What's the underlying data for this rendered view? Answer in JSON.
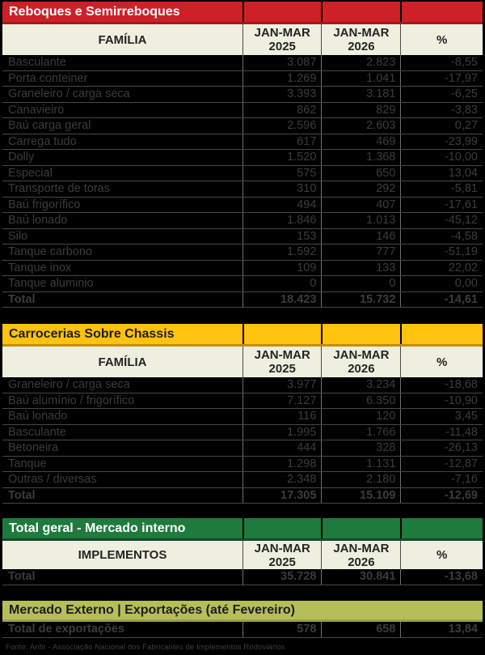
{
  "colors": {
    "page_bg": "#000000",
    "column_header_row_bg": "#EFEFE0",
    "column_header_text": "#242424",
    "row_bg": "#000000",
    "row_text": "#3B3B3B",
    "row_divider": "#474747",
    "column_divider": "#6F6F6F",
    "section_red": "#CE2026",
    "section_yellow": "#FFC20E",
    "section_green": "#1F7A3E",
    "section_olive": "#B6BE5B"
  },
  "chart_data": [
    {
      "type": "table",
      "title": "Reboques e Semirreboques",
      "title_bg": "#CE2026",
      "title_strip": "#9E1B1F",
      "title_color": "#FFFFFF",
      "label_column": "FAMÍLIA",
      "period_columns": [
        {
          "line1": "JAN-MAR",
          "line2": "2025"
        },
        {
          "line1": "JAN-MAR",
          "line2": "2026"
        }
      ],
      "pct_column": "%",
      "rows": [
        {
          "label": "Basculante",
          "y2025": "3.087",
          "y2026": "2.823",
          "pct": "-8,55",
          "bold": false
        },
        {
          "label": "Porta conteiner",
          "y2025": "1.269",
          "y2026": "1.041",
          "pct": "-17,97",
          "bold": false
        },
        {
          "label": "Graneleiro / carga seca",
          "y2025": "3.393",
          "y2026": "3.181",
          "pct": "-6,25",
          "bold": false
        },
        {
          "label": "Canavieiro",
          "y2025": "862",
          "y2026": "829",
          "pct": "-3,83",
          "bold": false
        },
        {
          "label": "Baú carga geral",
          "y2025": "2.596",
          "y2026": "2.603",
          "pct": "0,27",
          "bold": false
        },
        {
          "label": "Carrega tudo",
          "y2025": "617",
          "y2026": "469",
          "pct": "-23,99",
          "bold": false
        },
        {
          "label": "Dolly",
          "y2025": "1.520",
          "y2026": "1.368",
          "pct": "-10,00",
          "bold": false
        },
        {
          "label": "Especial",
          "y2025": "575",
          "y2026": "650",
          "pct": "13,04",
          "bold": false
        },
        {
          "label": "Transporte de toras",
          "y2025": "310",
          "y2026": "292",
          "pct": "-5,81",
          "bold": false
        },
        {
          "label": "Baú frigorífico",
          "y2025": "494",
          "y2026": "407",
          "pct": "-17,61",
          "bold": false
        },
        {
          "label": "Baú lonado",
          "y2025": "1.846",
          "y2026": "1.013",
          "pct": "-45,12",
          "bold": false
        },
        {
          "label": "Silo",
          "y2025": "153",
          "y2026": "146",
          "pct": "-4,58",
          "bold": false
        },
        {
          "label": "Tanque carbono",
          "y2025": "1.592",
          "y2026": "777",
          "pct": "-51,19",
          "bold": false
        },
        {
          "label": "Tanque inox",
          "y2025": "109",
          "y2026": "133",
          "pct": "22,02",
          "bold": false
        },
        {
          "label": "Tanque aluminio",
          "y2025": "0",
          "y2026": "0",
          "pct": "0,00",
          "bold": false
        },
        {
          "label": "Total",
          "y2025": "18.423",
          "y2026": "15.732",
          "pct": "-14,61",
          "bold": true
        }
      ]
    },
    {
      "type": "table",
      "title": "Carrocerias Sobre Chassis",
      "title_bg": "#FFC20E",
      "title_strip": "#C28F00",
      "title_color": "#1D1D1D",
      "label_column": "FAMÍLIA",
      "period_columns": [
        {
          "line1": "JAN-MAR",
          "line2": "2025"
        },
        {
          "line1": "JAN-MAR",
          "line2": "2026"
        }
      ],
      "pct_column": "%",
      "rows": [
        {
          "label": "Graneleiro / carga seca",
          "y2025": "3.977",
          "y2026": "3.234",
          "pct": "-18,68",
          "bold": false
        },
        {
          "label": "Baú alumínio / frigorífico",
          "y2025": "7.127",
          "y2026": "6.350",
          "pct": "-10,90",
          "bold": false
        },
        {
          "label": "Baú lonado",
          "y2025": "116",
          "y2026": "120",
          "pct": "3,45",
          "bold": false
        },
        {
          "label": "Basculante",
          "y2025": "1.995",
          "y2026": "1.766",
          "pct": "-11,48",
          "bold": false
        },
        {
          "label": "Betoneira",
          "y2025": "444",
          "y2026": "328",
          "pct": "-26,13",
          "bold": false
        },
        {
          "label": "Tanque",
          "y2025": "1.298",
          "y2026": "1.131",
          "pct": "-12,87",
          "bold": false
        },
        {
          "label": "Outras / diversas",
          "y2025": "2.348",
          "y2026": "2.180",
          "pct": "-7,16",
          "bold": false
        },
        {
          "label": "Total",
          "y2025": "17.305",
          "y2026": "15.109",
          "pct": "-12,69",
          "bold": true
        }
      ]
    },
    {
      "type": "table",
      "title": "Total geral - Mercado interno",
      "title_bg": "#1F7A3E",
      "title_strip": "#134B27",
      "title_color": "#FFFFFF",
      "label_column": "IMPLEMENTOS",
      "period_columns": [
        {
          "line1": "JAN-MAR",
          "line2": "2025"
        },
        {
          "line1": "JAN-MAR",
          "line2": "2026"
        }
      ],
      "pct_column": "%",
      "rows": [
        {
          "label": "Total",
          "y2025": "35.728",
          "y2026": "30.841",
          "pct": "-13,68",
          "bold": true
        }
      ]
    },
    {
      "type": "table",
      "title": "Mercado Externo | Exportações  (até Fevereiro)",
      "title_bg": "#B6BE5B",
      "title_strip": "#9AA148",
      "title_color": "#1D1D1D",
      "rows": [
        {
          "label": "Total de exportações",
          "y2025": "578",
          "y2026": "658",
          "pct": "13,84",
          "bold": true
        }
      ]
    }
  ],
  "footer": {
    "source": "Fonte: Anfir - Associação Nacional dos Fabricantes de Implementos Rodoviários"
  }
}
